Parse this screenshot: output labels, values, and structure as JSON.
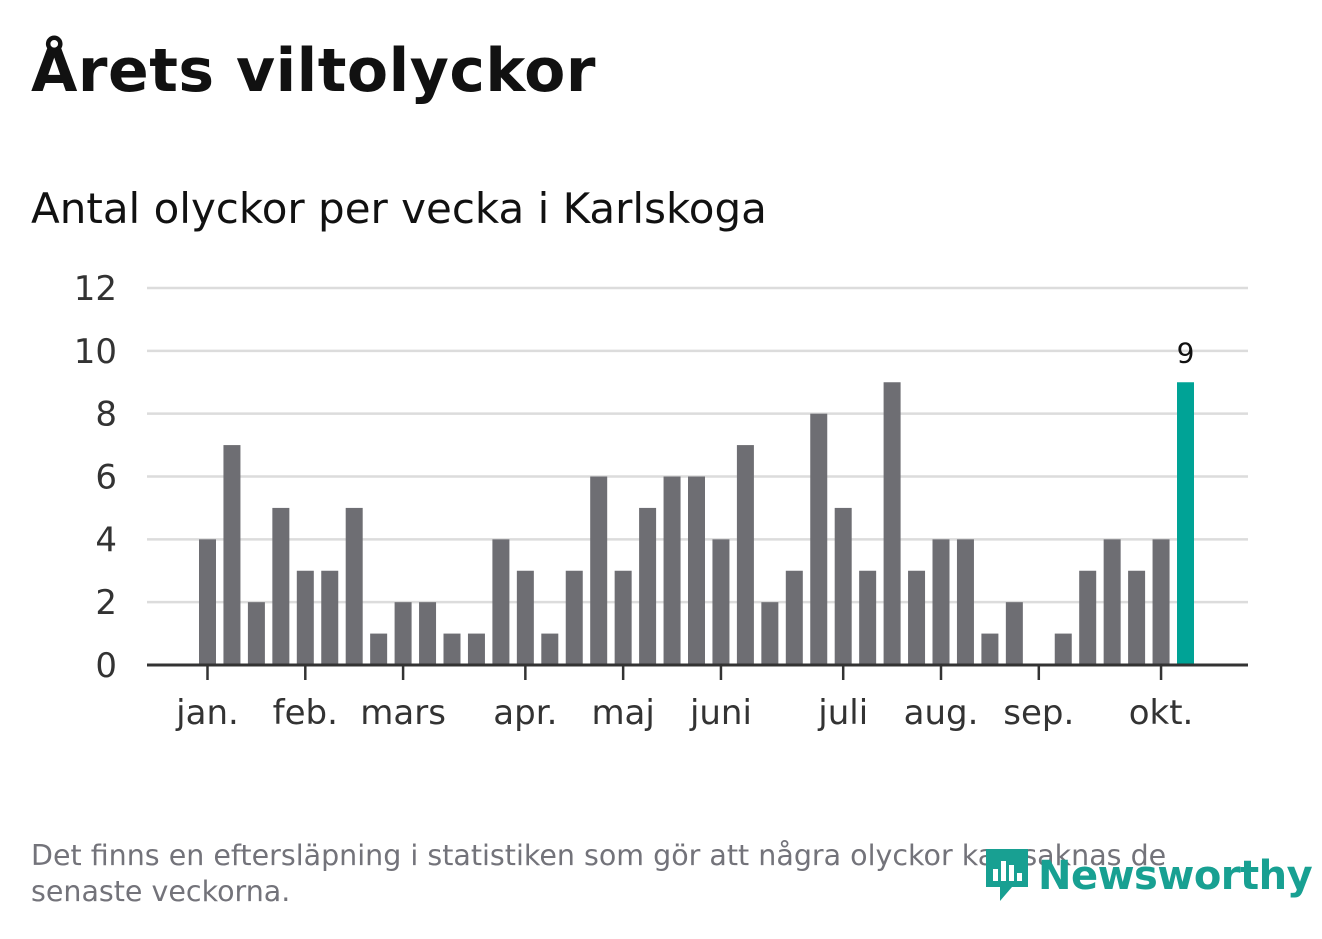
{
  "header": {
    "title": "Årets viltolyckor",
    "subtitle": "Antal olyckor per vecka i Karlskoga"
  },
  "footer": {
    "note": "Det finns en eftersläpning i statistiken som gör att några olyckor kan saknas de senaste veckorna.",
    "brand": "Newsworthy",
    "brand_icon": "newsworthy-logo-icon"
  },
  "colors": {
    "bar": "#6e6e73",
    "highlight": "#00a396",
    "grid": "#dcdcdc",
    "axis": "#333333",
    "brand": "#18a092"
  },
  "chart_data": {
    "type": "bar",
    "title": "Antal olyckor per vecka i Karlskoga",
    "xlabel": "",
    "ylabel": "",
    "ylim": [
      0,
      12
    ],
    "yticks": [
      "0",
      "2",
      "4",
      "6",
      "8",
      "10",
      "12"
    ],
    "grid": true,
    "weeks": [
      1,
      2,
      3,
      4,
      5,
      6,
      7,
      8,
      9,
      10,
      11,
      12,
      13,
      14,
      15,
      16,
      17,
      18,
      19,
      20,
      21,
      22,
      23,
      24,
      25,
      26,
      27,
      28,
      29,
      30,
      31,
      32,
      33,
      34,
      35,
      36,
      37,
      38,
      39,
      40,
      41
    ],
    "values": [
      4,
      7,
      2,
      5,
      3,
      3,
      5,
      1,
      2,
      2,
      1,
      1,
      4,
      3,
      1,
      3,
      6,
      3,
      5,
      6,
      6,
      4,
      7,
      2,
      3,
      8,
      5,
      3,
      9,
      3,
      4,
      4,
      1,
      2,
      0,
      1,
      3,
      4,
      3,
      4,
      9
    ],
    "highlight_index": 40,
    "highlight_label": "9",
    "month_ticks": [
      {
        "label": "jan.",
        "week": 1
      },
      {
        "label": "feb.",
        "week": 5
      },
      {
        "label": "mars",
        "week": 9
      },
      {
        "label": "apr.",
        "week": 14
      },
      {
        "label": "maj",
        "week": 18
      },
      {
        "label": "juni",
        "week": 22
      },
      {
        "label": "juli",
        "week": 27
      },
      {
        "label": "aug.",
        "week": 31
      },
      {
        "label": "sep.",
        "week": 35
      },
      {
        "label": "okt.",
        "week": 40
      }
    ]
  }
}
